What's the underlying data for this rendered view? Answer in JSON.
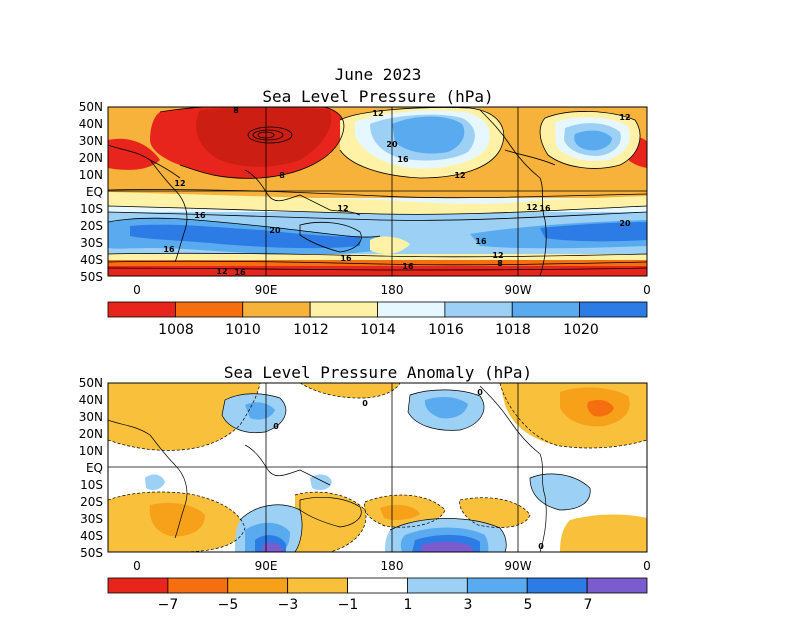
{
  "figure": {
    "date_title": "June 2023",
    "top_title": "Sea Level Pressure (hPa)",
    "bottom_title": "Sea Level Pressure Anomaly (hPa)"
  },
  "axes": {
    "lat_labels": [
      "50N",
      "40N",
      "30N",
      "20N",
      "10N",
      "EQ",
      "10S",
      "20S",
      "30S",
      "40S",
      "50S"
    ],
    "lon_labels": [
      "0",
      "90E",
      "180",
      "90W",
      "0"
    ]
  },
  "top_map": {
    "contour_labels": [
      "8",
      "12",
      "20",
      "16",
      "12",
      "12",
      "8",
      "12",
      "16",
      "12",
      "16",
      "20",
      "16",
      "20",
      "16",
      "12",
      "16",
      "12",
      "16",
      "12",
      "8",
      "16"
    ]
  },
  "top_colorbar": {
    "colors": [
      "#e8251c",
      "#f56e0f",
      "#f7b23c",
      "#fff2a6",
      "#e6f7ff",
      "#9dd0f5",
      "#5aaaf0",
      "#2d7ce6"
    ],
    "labels": [
      "1008",
      "1010",
      "1012",
      "1014",
      "1016",
      "1018",
      "1020"
    ]
  },
  "bottom_map": {
    "contour_labels": [
      "0",
      "0",
      "0",
      "0"
    ]
  },
  "bottom_colorbar": {
    "colors": [
      "#e8251c",
      "#f56e0f",
      "#f7a11a",
      "#f9c03c",
      "#ffffff",
      "#9dd0f5",
      "#5aaaf0",
      "#2d7ce6",
      "#7b5ccf"
    ],
    "labels": [
      "−7",
      "−5",
      "−3",
      "−1",
      "1",
      "3",
      "5",
      "7"
    ]
  }
}
